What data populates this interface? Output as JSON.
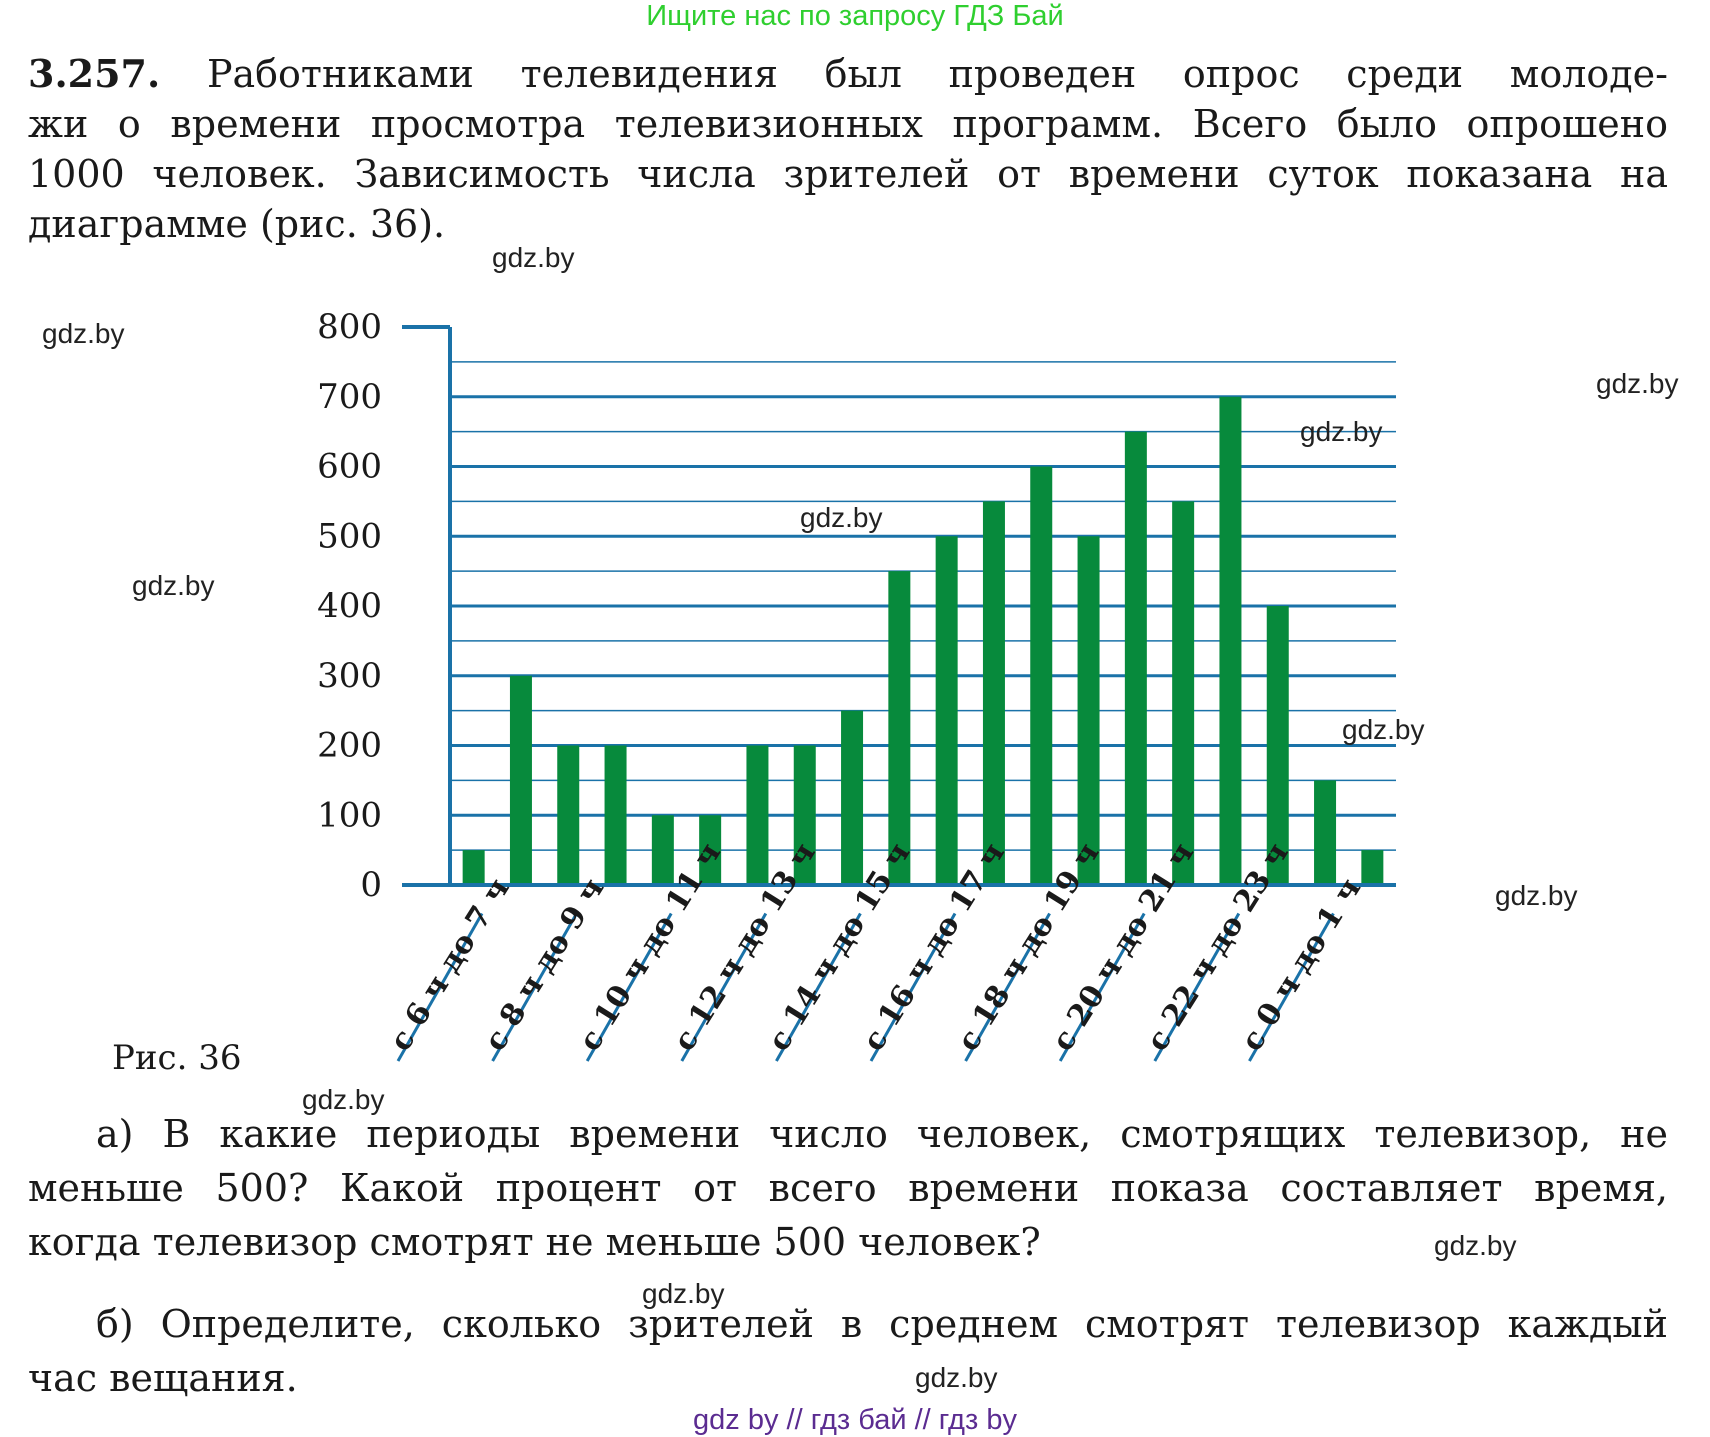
{
  "banner": "Ищите нас по запросу ГДЗ Бай",
  "problem": {
    "number": "3.257.",
    "lines": [
      "Работниками телевидения был проведен опрос среди молоде-",
      "жи о времени просмотра телевизионных программ. Всего было опрошено",
      "1000 человек. Зависимость числа зрителей от времени суток показана на",
      "диаграмме (рис. 36)."
    ]
  },
  "figure_caption": "Рис. 36",
  "question_a": [
    "а) В какие периоды времени число человек, смотрящих телевизор, не",
    "меньше 500? Какой процент от всего времени показа составляет время,",
    "когда телевизор смотрят не меньше 500 человек?"
  ],
  "question_b": [
    "б) Определите, сколько зрителей в среднем смотрят телевизор каждый",
    "час вещания."
  ],
  "watermark": "gdz.by",
  "footer": "gdz by  //  гдз бай  //  гдз by",
  "colors": {
    "bar": "#078a3c",
    "axis": "#1a72a8",
    "banner": "#2fcf2f",
    "footer": "#5b2c91"
  },
  "chart_data": {
    "type": "bar",
    "categories": [
      "с 6 ч до 7 ч",
      "",
      "с 8 ч до 9 ч",
      "",
      "с 10 ч до 11 ч",
      "",
      "с 12 ч до 13 ч",
      "",
      "с 14 ч до 15 ч",
      "",
      "с 16 ч до 17 ч",
      "",
      "с 18 ч до 19 ч",
      "",
      "с 20 ч до 21 ч",
      "",
      "с 22 ч до 23 ч",
      "",
      "с 0 ч до 1 ч",
      ""
    ],
    "values": [
      50,
      300,
      200,
      200,
      100,
      100,
      200,
      200,
      250,
      450,
      500,
      550,
      600,
      500,
      650,
      550,
      700,
      400,
      150,
      50
    ],
    "ylim": [
      0,
      800
    ],
    "yticks": [
      0,
      100,
      200,
      300,
      400,
      500,
      600,
      700,
      800
    ],
    "grid": true,
    "title": "",
    "xlabel": "",
    "ylabel": ""
  }
}
